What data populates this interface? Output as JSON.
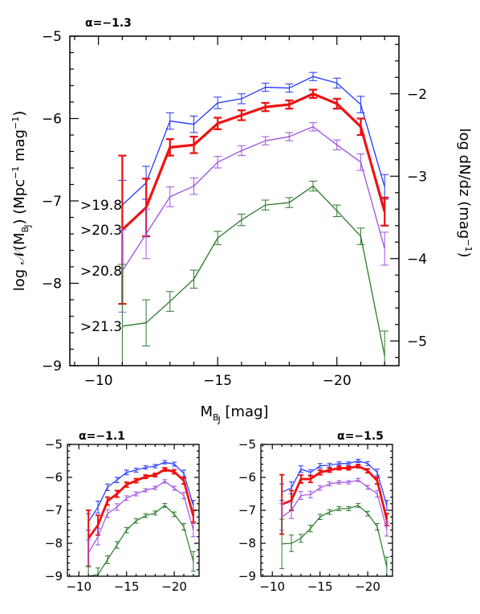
{
  "chart_data": [
    {
      "type": "line",
      "annotation": "α=−1.3",
      "xlabel": "M_BJ [mag]",
      "ylabel": "log 𝒩(M_BJ) (Mpc⁻¹ mag⁻¹)",
      "y2label": "log dN/dz (mag⁻¹)",
      "xlim": [
        -8.8,
        -22.6
      ],
      "ylim": [
        -9,
        -5
      ],
      "y2_offset": 3.7,
      "xticks": [
        -10,
        -15,
        -20
      ],
      "xtick_labels": [
        "−10",
        "−15",
        "−20"
      ],
      "yticks": [
        -5,
        -6,
        -7,
        -8,
        -9
      ],
      "ytick_labels": [
        "−5",
        "−6",
        "−7",
        "−8",
        "−9"
      ],
      "y2ticks": [
        -2,
        -3,
        -4,
        -5
      ],
      "y2tick_labels": [
        "−2",
        "−3",
        "−4",
        "−5"
      ],
      "grid": false,
      "x": [
        -11,
        -12,
        -13,
        -14,
        -15,
        -16,
        -17,
        -18,
        -19,
        -20,
        -21,
        -22
      ],
      "series": [
        {
          "name": ">19.8",
          "color": "#1f35ff",
          "width": 1.3,
          "values": [
            -7.05,
            -6.78,
            -6.03,
            -6.07,
            -5.81,
            -5.76,
            -5.62,
            -5.63,
            -5.49,
            -5.57,
            -5.83,
            -6.83
          ],
          "errors": [
            0.3,
            0.2,
            0.1,
            0.1,
            0.07,
            0.06,
            0.05,
            0.05,
            0.05,
            0.06,
            0.1,
            0.15
          ]
        },
        {
          "name": ">20.3",
          "color": "#ee1111",
          "width": 3.2,
          "values": [
            -7.35,
            -7.08,
            -6.35,
            -6.32,
            -6.06,
            -5.96,
            -5.86,
            -5.83,
            -5.7,
            -5.82,
            -6.1,
            -7.13
          ],
          "errors": [
            0.9,
            0.35,
            0.1,
            0.1,
            0.07,
            0.06,
            0.05,
            0.05,
            0.05,
            0.06,
            0.1,
            0.17
          ]
        },
        {
          "name": ">20.8",
          "color": "#a050e0",
          "width": 1.3,
          "values": [
            -7.85,
            -7.4,
            -6.95,
            -6.82,
            -6.53,
            -6.39,
            -6.27,
            -6.22,
            -6.1,
            -6.32,
            -6.53,
            -7.58
          ],
          "errors": [
            0.5,
            0.3,
            0.12,
            0.1,
            0.07,
            0.06,
            0.05,
            0.05,
            0.05,
            0.06,
            0.1,
            0.2
          ]
        },
        {
          "name": ">21.3",
          "color": "#2a7a2a",
          "width": 1.3,
          "values": [
            -8.52,
            -8.48,
            -8.22,
            -7.95,
            -7.45,
            -7.23,
            -7.05,
            -7.02,
            -6.82,
            -7.12,
            -7.43,
            -8.88
          ],
          "errors": [
            0.75,
            0.28,
            0.12,
            0.11,
            0.08,
            0.07,
            0.06,
            0.06,
            0.06,
            0.07,
            0.1,
            0.3
          ]
        }
      ]
    },
    {
      "type": "line",
      "annotation": "α=−1.1",
      "xlim": [
        -8.8,
        -22.6
      ],
      "ylim": [
        -9,
        -5
      ],
      "xticks": [
        -10,
        -15,
        -20
      ],
      "xtick_labels": [
        "−10",
        "−15",
        "−20"
      ],
      "yticks": [
        -5,
        -6,
        -7,
        -8,
        -9
      ],
      "ytick_labels": [
        "−5",
        "−6",
        "−7",
        "−8",
        "−9"
      ],
      "grid": false,
      "x": [
        -11,
        -12,
        -13,
        -14,
        -15,
        -16,
        -17,
        -18,
        -19,
        -20,
        -21,
        -22
      ],
      "series": [
        {
          "color": "#1f35ff",
          "width": 1.2,
          "values": [
            -7.35,
            -6.9,
            -6.3,
            -6.08,
            -5.85,
            -5.78,
            -5.7,
            -5.66,
            -5.54,
            -5.6,
            -5.88,
            -6.85
          ],
          "errors": [
            0.25,
            0.18,
            0.1,
            0.08,
            0.07,
            0.06,
            0.05,
            0.05,
            0.05,
            0.06,
            0.1,
            0.15
          ]
        },
        {
          "color": "#ee1111",
          "width": 2.8,
          "values": [
            -7.85,
            -7.45,
            -6.72,
            -6.5,
            -6.22,
            -6.1,
            -5.98,
            -5.93,
            -5.76,
            -5.83,
            -6.1,
            -7.18
          ],
          "errors": [
            0.85,
            0.3,
            0.12,
            0.1,
            0.07,
            0.06,
            0.05,
            0.05,
            0.05,
            0.06,
            0.1,
            0.18
          ]
        },
        {
          "color": "#a050e0",
          "width": 1.2,
          "values": [
            -8.3,
            -7.8,
            -7.1,
            -6.9,
            -6.63,
            -6.5,
            -6.39,
            -6.32,
            -6.12,
            -6.33,
            -6.55,
            -7.6
          ],
          "errors": [
            0.4,
            0.25,
            0.12,
            0.1,
            0.07,
            0.06,
            0.05,
            0.05,
            0.05,
            0.06,
            0.1,
            0.2
          ]
        },
        {
          "color": "#2a7a2a",
          "width": 1.2,
          "values": [
            -9.0,
            -8.95,
            -8.5,
            -8.05,
            -7.6,
            -7.32,
            -7.16,
            -7.08,
            -6.85,
            -7.12,
            -7.5,
            -8.55
          ],
          "errors": [
            0.3,
            0.2,
            0.12,
            0.1,
            0.08,
            0.07,
            0.06,
            0.06,
            0.06,
            0.07,
            0.1,
            0.3
          ]
        }
      ]
    },
    {
      "type": "line",
      "annotation": "α=−1.5",
      "xlim": [
        -8.8,
        -22.6
      ],
      "ylim": [
        -9,
        -5
      ],
      "xticks": [
        -10,
        -15,
        -20
      ],
      "xtick_labels": [
        "−10",
        "−15",
        "−20"
      ],
      "yticks": [
        -5,
        -6,
        -7,
        -8,
        -9
      ],
      "ytick_labels": [
        "−5",
        "−6",
        "−7",
        "−8",
        "−9"
      ],
      "grid": false,
      "x": [
        -11,
        -12,
        -13,
        -14,
        -15,
        -16,
        -17,
        -18,
        -19,
        -20,
        -21,
        -22
      ],
      "series": [
        {
          "color": "#1f35ff",
          "width": 1.2,
          "values": [
            -6.45,
            -6.32,
            -5.75,
            -5.85,
            -5.65,
            -5.63,
            -5.58,
            -5.58,
            -5.5,
            -5.58,
            -5.85,
            -6.85
          ],
          "errors": [
            0.25,
            0.18,
            0.1,
            0.08,
            0.07,
            0.06,
            0.05,
            0.05,
            0.05,
            0.06,
            0.1,
            0.15
          ]
        },
        {
          "color": "#ee1111",
          "width": 2.8,
          "values": [
            -6.82,
            -6.7,
            -6.05,
            -6.05,
            -5.85,
            -5.78,
            -5.72,
            -5.72,
            -5.66,
            -5.8,
            -6.1,
            -7.28
          ],
          "errors": [
            0.9,
            0.3,
            0.12,
            0.1,
            0.07,
            0.06,
            0.05,
            0.05,
            0.05,
            0.06,
            0.1,
            0.18
          ]
        },
        {
          "color": "#a050e0",
          "width": 1.2,
          "values": [
            -7.2,
            -7.0,
            -6.55,
            -6.52,
            -6.32,
            -6.2,
            -6.15,
            -6.15,
            -6.08,
            -6.3,
            -6.5,
            -7.58
          ],
          "errors": [
            0.4,
            0.25,
            0.12,
            0.1,
            0.07,
            0.06,
            0.05,
            0.05,
            0.05,
            0.06,
            0.1,
            0.2
          ]
        },
        {
          "color": "#2a7a2a",
          "width": 1.2,
          "values": [
            -8.02,
            -8.0,
            -7.85,
            -7.55,
            -7.2,
            -7.05,
            -6.95,
            -6.95,
            -6.85,
            -7.1,
            -7.5,
            -8.72
          ],
          "errors": [
            0.75,
            0.25,
            0.12,
            0.1,
            0.08,
            0.07,
            0.06,
            0.06,
            0.06,
            0.07,
            0.1,
            0.3
          ]
        }
      ]
    }
  ]
}
